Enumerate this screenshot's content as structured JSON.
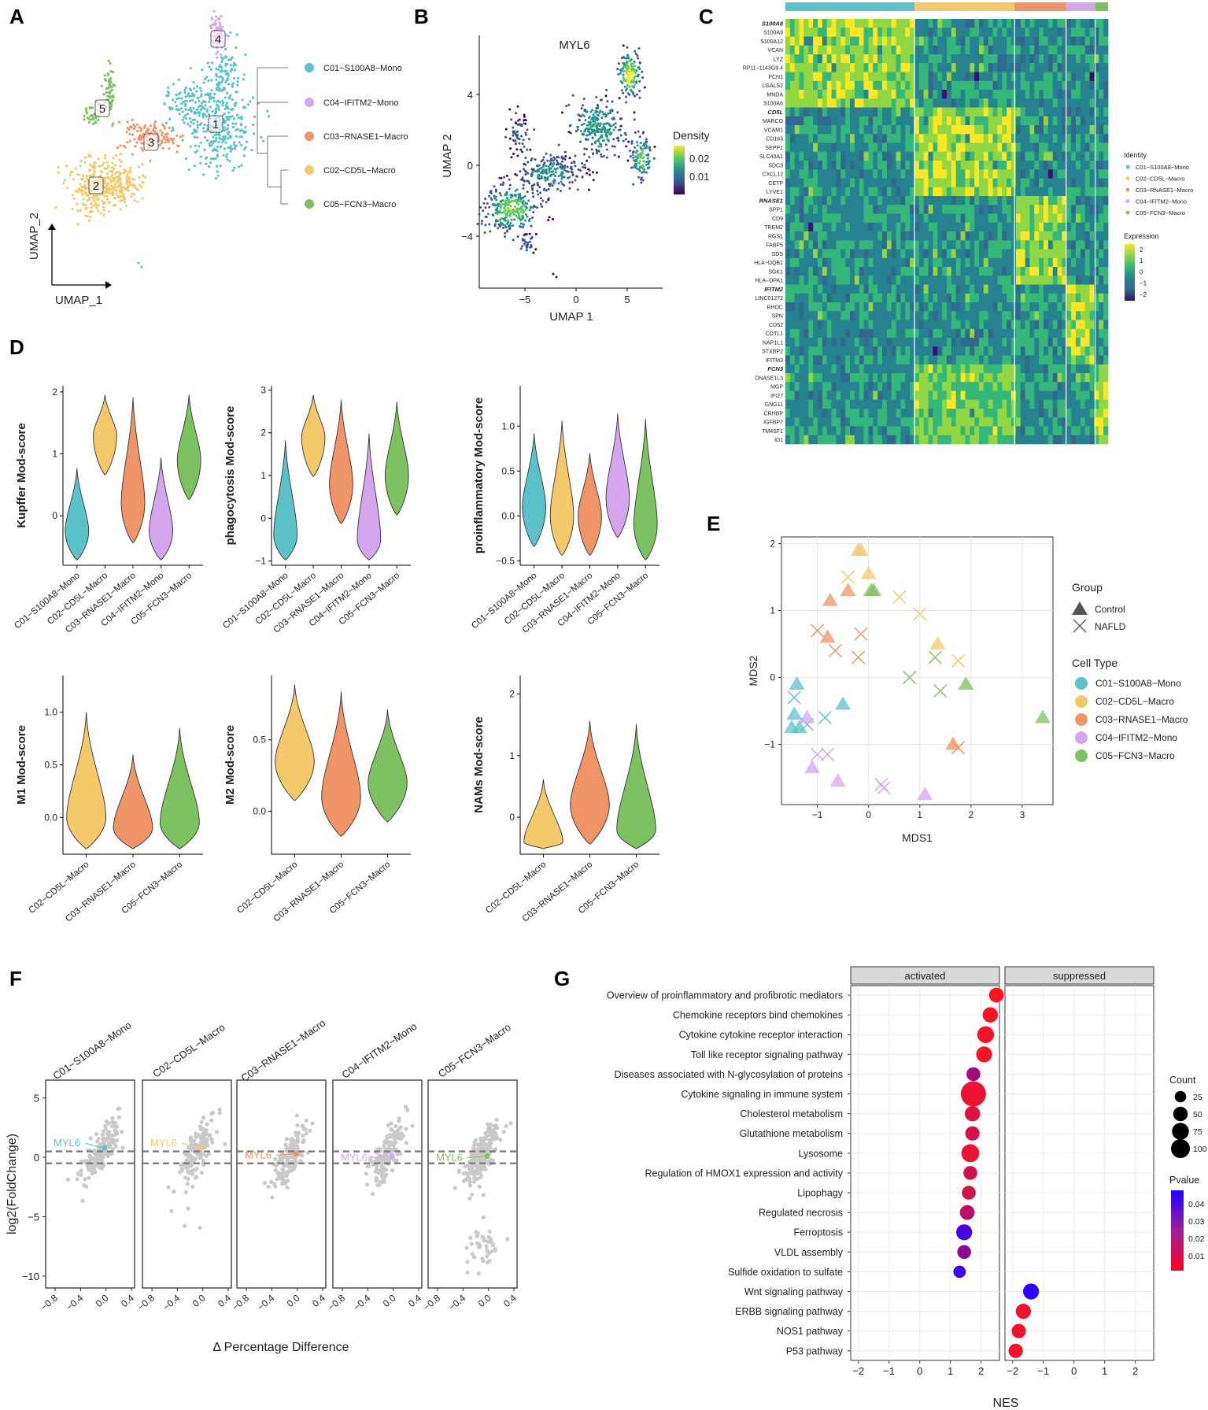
{
  "figure": {
    "panel_labels": [
      "A",
      "B",
      "C",
      "D",
      "E",
      "F",
      "G"
    ]
  },
  "colors": {
    "C01": "#5BC2C9",
    "C02": "#F3C96A",
    "C03": "#EE9467",
    "C04": "#D5A6EE",
    "C05": "#7DC260",
    "activated_hi": "#ff0000",
    "pvalue_lo": "#ff0022",
    "pvalue_hi": "#2200ff"
  },
  "clusters": [
    {
      "id": "C01",
      "num": "1",
      "name": "C01−S100A8−Mono"
    },
    {
      "id": "C02",
      "num": "2",
      "name": "C02−CD5L−Macro"
    },
    {
      "id": "C03",
      "num": "3",
      "name": "C03−RNASE1−Macro"
    },
    {
      "id": "C04",
      "num": "4",
      "name": "C04−IFITM2−Mono"
    },
    {
      "id": "C05",
      "num": "5",
      "name": "C05−FCN3−Macro"
    }
  ],
  "chart_data": [
    {
      "panel": "A",
      "type": "scatter",
      "title": "",
      "xlabel": "UMAP_1",
      "ylabel": "UMAP_2",
      "cluster_labels": [
        "1",
        "2",
        "3",
        "4",
        "5"
      ],
      "dendrogram_order": [
        "C01−S100A8−Mono",
        "C04−IFITM2−Mono",
        "C03−RNASE1−Macro",
        "C02−CD5L−Macro",
        "C05−FCN3−Macro"
      ]
    },
    {
      "panel": "B",
      "type": "scatter",
      "title": "MYL6",
      "xlabel": "UMAP 1",
      "ylabel": "UMAP 2",
      "xticks": [
        "−5",
        "0",
        "5"
      ],
      "yticks": [
        "4",
        "0",
        "−4"
      ],
      "legend_title": "Density",
      "legend_ticks": [
        "0.02",
        "0.01"
      ]
    },
    {
      "panel": "C",
      "type": "heatmap",
      "genes": [
        "S100A8",
        "S100A9",
        "S100A12",
        "VCAN",
        "LYZ",
        "RP11−1143G9.4",
        "FCN1",
        "LGALS2",
        "MNDA",
        "S100A6",
        "CD5L",
        "MARCO",
        "VCAM1",
        "CD163",
        "SEPP1",
        "SLC40A1",
        "SDC3",
        "CXCL12",
        "CETP",
        "LYVE1",
        "RNASE1",
        "SPP1",
        "CD9",
        "TREM2",
        "RGS1",
        "FABP5",
        "SDS",
        "HLA−DQB1",
        "SGK1",
        "HLA−DPA1",
        "IFITM2",
        "LINC01272",
        "RHOC",
        "SPN",
        "CD52",
        "COTL1",
        "NAP1L1",
        "STXBP2",
        "IFITM3",
        "FCN3",
        "DNASE1L3",
        "MGP",
        "IFI27",
        "GNG11",
        "CRHBP",
        "IGFBP7",
        "TM4SF1",
        "ID1"
      ],
      "bold_genes": [
        "S100A8",
        "CD5L",
        "RNASE1",
        "IFITM2",
        "FCN3"
      ],
      "group_fractions": [
        0.4,
        0.31,
        0.16,
        0.09,
        0.04
      ],
      "legend_identity_title": "Identity",
      "legend_expression_title": "Expression",
      "expression_ticks": [
        "2",
        "1",
        "0",
        "−1",
        "−2"
      ]
    },
    {
      "panel": "D",
      "type": "violin",
      "plots": [
        {
          "ylabel": "Kupffer Mod-score",
          "ymin": -0.8,
          "ymax": 2.1,
          "ticks": [
            0,
            1,
            2
          ],
          "groups": [
            "C01",
            "C02",
            "C03",
            "C04",
            "C05"
          ],
          "medians": [
            -0.25,
            1.3,
            0.2,
            -0.25,
            0.9
          ]
        },
        {
          "ylabel": "phagocytosis Mod-score",
          "ymin": -1.1,
          "ymax": 3.1,
          "ticks": [
            -1,
            0,
            1,
            2,
            3
          ],
          "groups": [
            "C01",
            "C02",
            "C03",
            "C04",
            "C05"
          ],
          "medians": [
            -0.4,
            1.9,
            0.8,
            -0.5,
            1.0
          ]
        },
        {
          "ylabel": "proinflammatory Mod-score",
          "ymin": -0.55,
          "ymax": 1.45,
          "ticks": [
            -0.5,
            0.0,
            0.5,
            1.0
          ],
          "tick_labels": [
            "−0.5",
            "0.0",
            "0.5",
            "1.0"
          ],
          "groups": [
            "C01",
            "C02",
            "C03",
            "C04",
            "C05"
          ],
          "medians": [
            0.1,
            0.0,
            0.0,
            0.2,
            -0.1
          ]
        },
        {
          "ylabel": "M1 Mod-score",
          "ymin": -0.35,
          "ymax": 1.35,
          "ticks": [
            0.0,
            0.5,
            1.0
          ],
          "tick_labels": [
            "0.0",
            "0.5",
            "1.0"
          ],
          "groups": [
            "C02",
            "C03",
            "C05"
          ],
          "medians": [
            0.0,
            -0.1,
            -0.05
          ]
        },
        {
          "ylabel": "M2 Mod-score",
          "ymin": -0.3,
          "ymax": 0.95,
          "ticks": [
            0.0,
            0.5
          ],
          "tick_labels": [
            "0.0",
            "0.5"
          ],
          "groups": [
            "C02",
            "C03",
            "C05"
          ],
          "medians": [
            0.35,
            0.1,
            0.2
          ]
        },
        {
          "ylabel": "NAMs Mod-score",
          "ymin": -0.6,
          "ymax": 2.3,
          "ticks": [
            0,
            1,
            2
          ],
          "tick_labels": [
            "0",
            "1",
            "2"
          ],
          "groups": [
            "C02",
            "C03",
            "C05"
          ],
          "medians": [
            -0.4,
            0.2,
            -0.2
          ]
        }
      ]
    },
    {
      "panel": "E",
      "type": "scatter",
      "xlabel": "MDS1",
      "ylabel": "MDS2",
      "xlim": [
        -1.7,
        3.6
      ],
      "ylim": [
        -1.9,
        2.1
      ],
      "xticks": [
        -1,
        0,
        1,
        2,
        3
      ],
      "yticks": [
        -1,
        0,
        1,
        2
      ],
      "legend_group_title": "Group",
      "groups": [
        "Control",
        "NAFLD"
      ],
      "legend_celltype_title": "Cell Type",
      "points": [
        {
          "x": -1.4,
          "y": -0.1,
          "c": "C01",
          "g": "Control"
        },
        {
          "x": -1.45,
          "y": -0.55,
          "c": "C01",
          "g": "Control"
        },
        {
          "x": -1.35,
          "y": -0.75,
          "c": "C01",
          "g": "Control"
        },
        {
          "x": -0.5,
          "y": -0.4,
          "c": "C01",
          "g": "Control"
        },
        {
          "x": -1.5,
          "y": -0.75,
          "c": "C01",
          "g": "Control"
        },
        {
          "x": -1.2,
          "y": -0.7,
          "c": "C01",
          "g": "NAFLD"
        },
        {
          "x": -0.85,
          "y": -0.6,
          "c": "C01",
          "g": "NAFLD"
        },
        {
          "x": -1.45,
          "y": -0.3,
          "c": "C01",
          "g": "NAFLD"
        },
        {
          "x": -0.2,
          "y": 1.9,
          "c": "C02",
          "g": "Control"
        },
        {
          "x": 0.0,
          "y": 1.55,
          "c": "C02",
          "g": "Control"
        },
        {
          "x": 1.35,
          "y": 0.5,
          "c": "C02",
          "g": "Control"
        },
        {
          "x": -0.15,
          "y": 1.9,
          "c": "C02",
          "g": "Control"
        },
        {
          "x": -0.4,
          "y": 1.5,
          "c": "C02",
          "g": "NAFLD"
        },
        {
          "x": 0.6,
          "y": 1.2,
          "c": "C02",
          "g": "NAFLD"
        },
        {
          "x": 1.0,
          "y": 0.95,
          "c": "C02",
          "g": "NAFLD"
        },
        {
          "x": 1.75,
          "y": 0.25,
          "c": "C02",
          "g": "NAFLD"
        },
        {
          "x": -0.4,
          "y": 1.3,
          "c": "C03",
          "g": "Control"
        },
        {
          "x": -0.75,
          "y": 1.15,
          "c": "C03",
          "g": "Control"
        },
        {
          "x": -0.8,
          "y": 0.6,
          "c": "C03",
          "g": "Control"
        },
        {
          "x": 1.65,
          "y": -1.0,
          "c": "C03",
          "g": "Control"
        },
        {
          "x": -1.0,
          "y": 0.7,
          "c": "C03",
          "g": "NAFLD"
        },
        {
          "x": -0.65,
          "y": 0.4,
          "c": "C03",
          "g": "NAFLD"
        },
        {
          "x": -0.15,
          "y": 0.65,
          "c": "C03",
          "g": "NAFLD"
        },
        {
          "x": -0.2,
          "y": 0.3,
          "c": "C03",
          "g": "NAFLD"
        },
        {
          "x": 1.75,
          "y": -1.05,
          "c": "C03",
          "g": "NAFLD"
        },
        {
          "x": -1.2,
          "y": -0.6,
          "c": "C04",
          "g": "Control"
        },
        {
          "x": -1.1,
          "y": -1.35,
          "c": "C04",
          "g": "Control"
        },
        {
          "x": -0.6,
          "y": -1.55,
          "c": "C04",
          "g": "Control"
        },
        {
          "x": 1.1,
          "y": -1.75,
          "c": "C04",
          "g": "Control"
        },
        {
          "x": -1.0,
          "y": -1.15,
          "c": "C04",
          "g": "NAFLD"
        },
        {
          "x": -0.8,
          "y": -1.15,
          "c": "C04",
          "g": "NAFLD"
        },
        {
          "x": 0.25,
          "y": -1.6,
          "c": "C04",
          "g": "NAFLD"
        },
        {
          "x": 0.3,
          "y": -1.65,
          "c": "C04",
          "g": "NAFLD"
        },
        {
          "x": 0.05,
          "y": 1.3,
          "c": "C05",
          "g": "Control"
        },
        {
          "x": 0.1,
          "y": 1.3,
          "c": "C05",
          "g": "Control"
        },
        {
          "x": 1.9,
          "y": -0.1,
          "c": "C05",
          "g": "Control"
        },
        {
          "x": 3.4,
          "y": -0.6,
          "c": "C05",
          "g": "Control"
        },
        {
          "x": 0.8,
          "y": -0.0,
          "c": "C05",
          "g": "NAFLD"
        },
        {
          "x": 1.3,
          "y": 0.3,
          "c": "C05",
          "g": "NAFLD"
        },
        {
          "x": 1.4,
          "y": -0.2,
          "c": "C05",
          "g": "NAFLD"
        }
      ]
    },
    {
      "panel": "F",
      "type": "scatter",
      "ylabel": "log2(FoldChange)",
      "xlabel": "Δ Percentage Difference",
      "facets": [
        "C01−S100A8−Mono",
        "C02−CD5L−Macro",
        "C03−RNASE1−Macro",
        "C04−IFITM2−Mono",
        "C05−FCN3−Macro"
      ],
      "highlight_gene": "MYL6",
      "xticks": [
        "−0.8",
        "−0.4",
        "0.0",
        "0.4"
      ],
      "yticks": [
        5,
        0,
        -5,
        -10
      ],
      "ytick_labels": [
        "5",
        "0",
        "−5",
        "−10"
      ],
      "ylim": [
        -11,
        6.5
      ],
      "xlim": [
        -0.95,
        0.45
      ],
      "thresholds": [
        0.5,
        -0.5
      ]
    },
    {
      "panel": "G",
      "type": "dot",
      "xlabel": "NES",
      "facets": [
        "activated",
        "suppressed"
      ],
      "xticks": [
        -2,
        -1,
        0,
        1,
        2
      ],
      "xtick_labels": [
        "−2",
        "−1",
        "0",
        "1",
        "2"
      ],
      "xlim": [
        -2.25,
        2.6
      ],
      "legend_count_title": "Count",
      "count_ticks": [
        25,
        50,
        75,
        100
      ],
      "legend_pvalue_title": "Pvalue",
      "pvalue_ticks": [
        "0.04",
        "0.03",
        "0.02",
        "0.01"
      ],
      "pathways": [
        {
          "name": "Overview of proinflammatory and profibrotic mediators",
          "facet": "activated",
          "nes": 2.5,
          "count": 22,
          "p": 0.001
        },
        {
          "name": "Chemokine receptors bind chemokines",
          "facet": "activated",
          "nes": 2.3,
          "count": 25,
          "p": 0.002
        },
        {
          "name": "Cytokine cytokine receptor interaction",
          "facet": "activated",
          "nes": 2.15,
          "count": 33,
          "p": 0.003
        },
        {
          "name": "Toll like receptor signaling pathway",
          "facet": "activated",
          "nes": 2.1,
          "count": 28,
          "p": 0.002
        },
        {
          "name": "Diseases associated with N-glycosylation of proteins",
          "facet": "activated",
          "nes": 1.75,
          "count": 18,
          "p": 0.02
        },
        {
          "name": "Cytokine signaling in immune system",
          "facet": "activated",
          "nes": 1.75,
          "count": 100,
          "p": 0.005
        },
        {
          "name": "Cholesterol metabolism",
          "facet": "activated",
          "nes": 1.72,
          "count": 25,
          "p": 0.008
        },
        {
          "name": "Glutathione metabolism",
          "facet": "activated",
          "nes": 1.72,
          "count": 20,
          "p": 0.01
        },
        {
          "name": "Lysosome",
          "facet": "activated",
          "nes": 1.65,
          "count": 40,
          "p": 0.005
        },
        {
          "name": "Regulation of HMOX1 expression and activity",
          "facet": "activated",
          "nes": 1.65,
          "count": 18,
          "p": 0.01
        },
        {
          "name": "Lipophagy",
          "facet": "activated",
          "nes": 1.6,
          "count": 18,
          "p": 0.01
        },
        {
          "name": "Regulated necrosis",
          "facet": "activated",
          "nes": 1.55,
          "count": 22,
          "p": 0.015
        },
        {
          "name": "Ferroptosis",
          "facet": "activated",
          "nes": 1.45,
          "count": 28,
          "p": 0.04
        },
        {
          "name": "VLDL assembly",
          "facet": "activated",
          "nes": 1.45,
          "count": 18,
          "p": 0.025
        },
        {
          "name": "Sulfide oxidation to sulfate",
          "facet": "activated",
          "nes": 1.3,
          "count": 12,
          "p": 0.042
        },
        {
          "name": "Wnt signaling pathway",
          "facet": "suppressed",
          "nes": -1.4,
          "count": 28,
          "p": 0.045
        },
        {
          "name": "ERBB signaling pathway",
          "facet": "suppressed",
          "nes": -1.65,
          "count": 24,
          "p": 0.005
        },
        {
          "name": "NOS1 pathway",
          "facet": "suppressed",
          "nes": -1.8,
          "count": 20,
          "p": 0.004
        },
        {
          "name": "P53 pathway",
          "facet": "suppressed",
          "nes": -1.9,
          "count": 20,
          "p": 0.003
        }
      ]
    }
  ]
}
